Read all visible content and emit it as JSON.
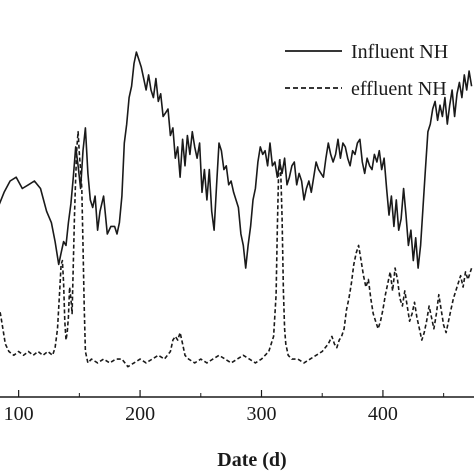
{
  "chart_data": {
    "type": "line",
    "xlabel": "Date (d)",
    "ylabel": "",
    "title": "",
    "xlim": [
      83,
      475
    ],
    "ylim": [
      0,
      100
    ],
    "x_ticks": [
      100,
      200,
      300,
      400
    ],
    "grid": false,
    "legend_position": "top-right",
    "series": [
      {
        "name": "Influent NH",
        "line_style": "solid",
        "color": "#1a1a1a",
        "points": [
          [
            83,
            50
          ],
          [
            88,
            54
          ],
          [
            93,
            57
          ],
          [
            98,
            58
          ],
          [
            103,
            55
          ],
          [
            108,
            56
          ],
          [
            113,
            57
          ],
          [
            118,
            55
          ],
          [
            123,
            49
          ],
          [
            127,
            46
          ],
          [
            130,
            41
          ],
          [
            133,
            35
          ],
          [
            135,
            38
          ],
          [
            137,
            41
          ],
          [
            139,
            40
          ],
          [
            141,
            46
          ],
          [
            143,
            51
          ],
          [
            145,
            58
          ],
          [
            147,
            66
          ],
          [
            149,
            61
          ],
          [
            151,
            55
          ],
          [
            153,
            65
          ],
          [
            155,
            71
          ],
          [
            157,
            59
          ],
          [
            159,
            52
          ],
          [
            161,
            50
          ],
          [
            163,
            53
          ],
          [
            165,
            44
          ],
          [
            167,
            49
          ],
          [
            170,
            53
          ],
          [
            173,
            43
          ],
          [
            176,
            45
          ],
          [
            179,
            45
          ],
          [
            181,
            43
          ],
          [
            183,
            46
          ],
          [
            185,
            53
          ],
          [
            187,
            67
          ],
          [
            189,
            72
          ],
          [
            191,
            79
          ],
          [
            193,
            82
          ],
          [
            195,
            88
          ],
          [
            197,
            91
          ],
          [
            199,
            89
          ],
          [
            201,
            87
          ],
          [
            203,
            84
          ],
          [
            205,
            81
          ],
          [
            207,
            85
          ],
          [
            209,
            81
          ],
          [
            211,
            79
          ],
          [
            213,
            84
          ],
          [
            215,
            78
          ],
          [
            217,
            80
          ],
          [
            219,
            74
          ],
          [
            221,
            75
          ],
          [
            223,
            76
          ],
          [
            225,
            69
          ],
          [
            227,
            71
          ],
          [
            229,
            63
          ],
          [
            231,
            66
          ],
          [
            233,
            58
          ],
          [
            235,
            68
          ],
          [
            237,
            61
          ],
          [
            239,
            69
          ],
          [
            241,
            64
          ],
          [
            243,
            70
          ],
          [
            245,
            66
          ],
          [
            247,
            63
          ],
          [
            249,
            67
          ],
          [
            251,
            54
          ],
          [
            253,
            60
          ],
          [
            255,
            52
          ],
          [
            257,
            60
          ],
          [
            259,
            49
          ],
          [
            261,
            44
          ],
          [
            263,
            56
          ],
          [
            265,
            67
          ],
          [
            267,
            65
          ],
          [
            269,
            60
          ],
          [
            271,
            61
          ],
          [
            273,
            56
          ],
          [
            275,
            57
          ],
          [
            277,
            54
          ],
          [
            279,
            52
          ],
          [
            281,
            50
          ],
          [
            283,
            43
          ],
          [
            285,
            40
          ],
          [
            287,
            34
          ],
          [
            289,
            40
          ],
          [
            291,
            45
          ],
          [
            293,
            52
          ],
          [
            295,
            55
          ],
          [
            297,
            62
          ],
          [
            299,
            66
          ],
          [
            301,
            64
          ],
          [
            303,
            65
          ],
          [
            305,
            61
          ],
          [
            307,
            67
          ],
          [
            309,
            61
          ],
          [
            311,
            62
          ],
          [
            313,
            58
          ],
          [
            315,
            62
          ],
          [
            317,
            59
          ],
          [
            319,
            63
          ],
          [
            321,
            56
          ],
          [
            323,
            58
          ],
          [
            325,
            61
          ],
          [
            327,
            62
          ],
          [
            329,
            56
          ],
          [
            331,
            59
          ],
          [
            333,
            57
          ],
          [
            335,
            52
          ],
          [
            337,
            55
          ],
          [
            339,
            57
          ],
          [
            341,
            54
          ],
          [
            343,
            58
          ],
          [
            345,
            62
          ],
          [
            347,
            60
          ],
          [
            349,
            59
          ],
          [
            351,
            58
          ],
          [
            353,
            63
          ],
          [
            355,
            67
          ],
          [
            357,
            64
          ],
          [
            359,
            62
          ],
          [
            361,
            64
          ],
          [
            363,
            68
          ],
          [
            365,
            63
          ],
          [
            367,
            67
          ],
          [
            369,
            66
          ],
          [
            371,
            63
          ],
          [
            373,
            61
          ],
          [
            375,
            65
          ],
          [
            377,
            64
          ],
          [
            379,
            67
          ],
          [
            381,
            68
          ],
          [
            383,
            62
          ],
          [
            385,
            59
          ],
          [
            387,
            63
          ],
          [
            389,
            61
          ],
          [
            391,
            60
          ],
          [
            393,
            64
          ],
          [
            395,
            62
          ],
          [
            397,
            65
          ],
          [
            399,
            60
          ],
          [
            401,
            63
          ],
          [
            403,
            55
          ],
          [
            405,
            48
          ],
          [
            407,
            53
          ],
          [
            409,
            45
          ],
          [
            411,
            52
          ],
          [
            413,
            44
          ],
          [
            415,
            47
          ],
          [
            417,
            55
          ],
          [
            419,
            48
          ],
          [
            421,
            40
          ],
          [
            423,
            44
          ],
          [
            425,
            36
          ],
          [
            427,
            42
          ],
          [
            429,
            34
          ],
          [
            431,
            40
          ],
          [
            433,
            50
          ],
          [
            435,
            60
          ],
          [
            437,
            70
          ],
          [
            439,
            72
          ],
          [
            441,
            76
          ],
          [
            443,
            78
          ],
          [
            445,
            73
          ],
          [
            447,
            77
          ],
          [
            449,
            74
          ],
          [
            451,
            79
          ],
          [
            453,
            72
          ],
          [
            455,
            77
          ],
          [
            457,
            81
          ],
          [
            459,
            74
          ],
          [
            461,
            80
          ],
          [
            463,
            83
          ],
          [
            465,
            79
          ],
          [
            467,
            85
          ],
          [
            469,
            81
          ],
          [
            471,
            86
          ],
          [
            473,
            82
          ]
        ]
      },
      {
        "name": "effluent NH",
        "line_style": "dashed",
        "color": "#1a1a1a",
        "points": [
          [
            83,
            24
          ],
          [
            85,
            22
          ],
          [
            87,
            18
          ],
          [
            89,
            14
          ],
          [
            92,
            12
          ],
          [
            96,
            11
          ],
          [
            100,
            12
          ],
          [
            104,
            11
          ],
          [
            108,
            12
          ],
          [
            112,
            11
          ],
          [
            116,
            12
          ],
          [
            120,
            11
          ],
          [
            124,
            12
          ],
          [
            128,
            11
          ],
          [
            130,
            13
          ],
          [
            132,
            18
          ],
          [
            134,
            29
          ],
          [
            135,
            35
          ],
          [
            136,
            36
          ],
          [
            137,
            30
          ],
          [
            138,
            20
          ],
          [
            139,
            15
          ],
          [
            140,
            17
          ],
          [
            141,
            21
          ],
          [
            142,
            29
          ],
          [
            143,
            26
          ],
          [
            144,
            22
          ],
          [
            145,
            35
          ],
          [
            146,
            48
          ],
          [
            147,
            58
          ],
          [
            148,
            66
          ],
          [
            149,
            70
          ],
          [
            150,
            64
          ],
          [
            151,
            60
          ],
          [
            152,
            55
          ],
          [
            153,
            40
          ],
          [
            154,
            24
          ],
          [
            155,
            12
          ],
          [
            157,
            9
          ],
          [
            160,
            10
          ],
          [
            165,
            9
          ],
          [
            170,
            10
          ],
          [
            175,
            9
          ],
          [
            180,
            10
          ],
          [
            185,
            10
          ],
          [
            190,
            8
          ],
          [
            195,
            9
          ],
          [
            200,
            10
          ],
          [
            205,
            9
          ],
          [
            210,
            10
          ],
          [
            215,
            11
          ],
          [
            220,
            10
          ],
          [
            225,
            12
          ],
          [
            227,
            15
          ],
          [
            229,
            16
          ],
          [
            231,
            15
          ],
          [
            233,
            17
          ],
          [
            235,
            14
          ],
          [
            237,
            11
          ],
          [
            240,
            10
          ],
          [
            245,
            9
          ],
          [
            250,
            10
          ],
          [
            255,
            9
          ],
          [
            260,
            10
          ],
          [
            265,
            11
          ],
          [
            270,
            10
          ],
          [
            275,
            9
          ],
          [
            280,
            10
          ],
          [
            285,
            11
          ],
          [
            290,
            10
          ],
          [
            295,
            9
          ],
          [
            300,
            10
          ],
          [
            303,
            11
          ],
          [
            306,
            12
          ],
          [
            308,
            14
          ],
          [
            310,
            16
          ],
          [
            312,
            27
          ],
          [
            313,
            44
          ],
          [
            314,
            58
          ],
          [
            315,
            63
          ],
          [
            316,
            58
          ],
          [
            317,
            47
          ],
          [
            318,
            28
          ],
          [
            319,
            18
          ],
          [
            320,
            14
          ],
          [
            322,
            11
          ],
          [
            325,
            10
          ],
          [
            330,
            10
          ],
          [
            335,
            9
          ],
          [
            340,
            10
          ],
          [
            345,
            11
          ],
          [
            350,
            12
          ],
          [
            355,
            14
          ],
          [
            358,
            16
          ],
          [
            360,
            14
          ],
          [
            362,
            13
          ],
          [
            364,
            15
          ],
          [
            366,
            16
          ],
          [
            368,
            18
          ],
          [
            370,
            23
          ],
          [
            372,
            26
          ],
          [
            374,
            30
          ],
          [
            376,
            35
          ],
          [
            378,
            38
          ],
          [
            380,
            40
          ],
          [
            382,
            36
          ],
          [
            384,
            32
          ],
          [
            386,
            29
          ],
          [
            388,
            31
          ],
          [
            390,
            26
          ],
          [
            392,
            22
          ],
          [
            394,
            20
          ],
          [
            396,
            18
          ],
          [
            398,
            20
          ],
          [
            400,
            23
          ],
          [
            402,
            27
          ],
          [
            404,
            30
          ],
          [
            406,
            33
          ],
          [
            408,
            28
          ],
          [
            410,
            34
          ],
          [
            412,
            31
          ],
          [
            414,
            26
          ],
          [
            416,
            24
          ],
          [
            418,
            28
          ],
          [
            420,
            24
          ],
          [
            422,
            20
          ],
          [
            424,
            22
          ],
          [
            426,
            25
          ],
          [
            428,
            21
          ],
          [
            430,
            18
          ],
          [
            432,
            15
          ],
          [
            434,
            17
          ],
          [
            436,
            20
          ],
          [
            438,
            24
          ],
          [
            440,
            21
          ],
          [
            442,
            18
          ],
          [
            444,
            22
          ],
          [
            446,
            27
          ],
          [
            448,
            23
          ],
          [
            450,
            19
          ],
          [
            452,
            17
          ],
          [
            454,
            20
          ],
          [
            456,
            23
          ],
          [
            458,
            26
          ],
          [
            460,
            28
          ],
          [
            462,
            30
          ],
          [
            464,
            32
          ],
          [
            466,
            29
          ],
          [
            468,
            33
          ],
          [
            470,
            31
          ],
          [
            473,
            34
          ]
        ]
      }
    ]
  }
}
